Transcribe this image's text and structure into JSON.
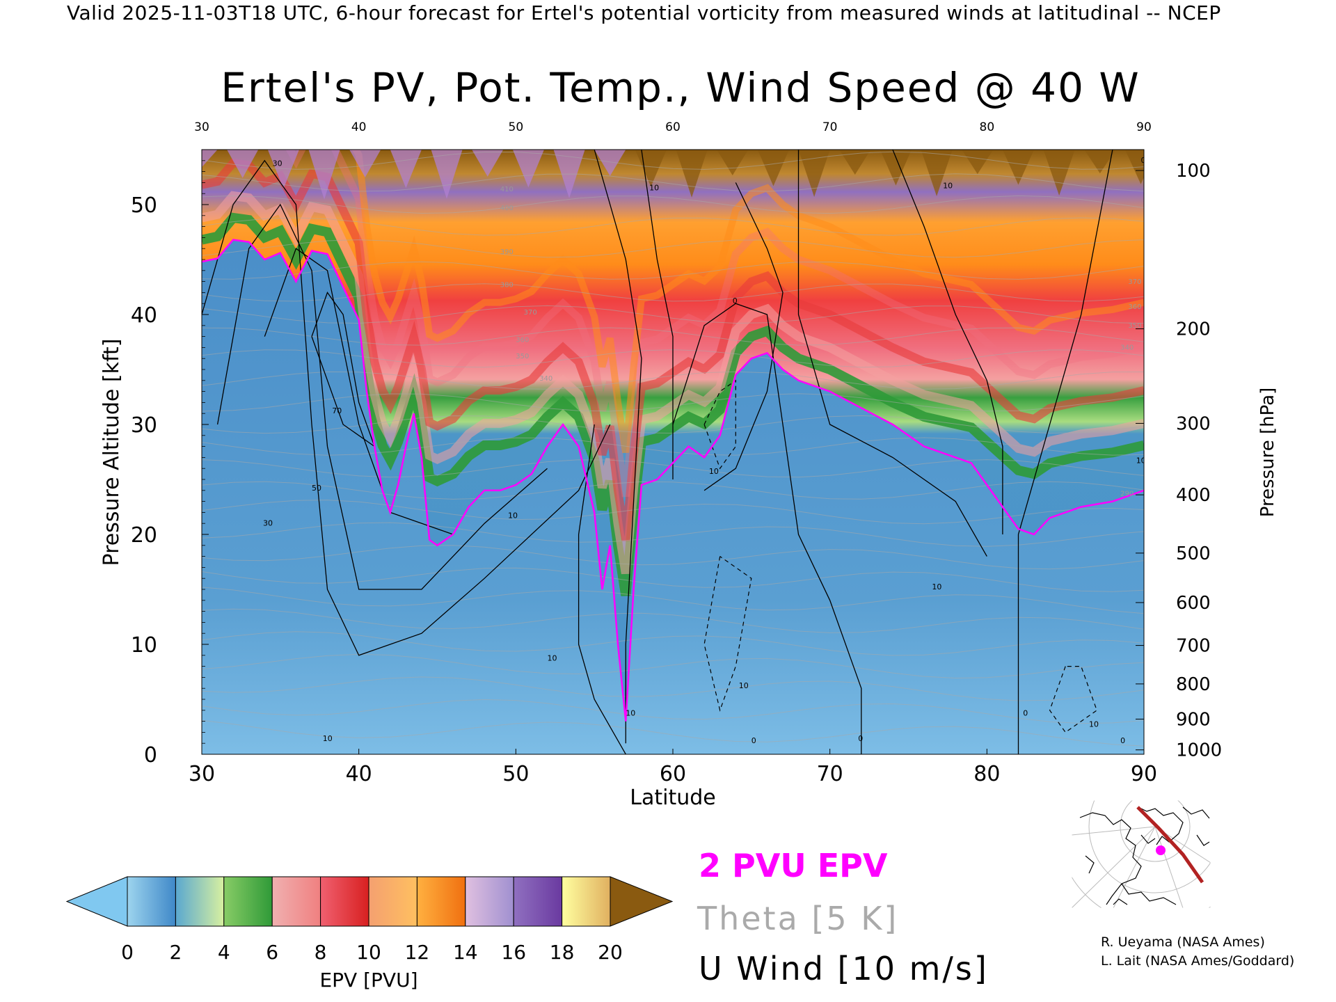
{
  "header": "Valid 2025-11-03T18 UTC, 6-hour forecast for Ertel's potential vorticity from measured winds at latitudinal -- NCEP",
  "chart_data": {
    "type": "heatmap",
    "title": "Ertel's PV, Pot. Temp., Wind Speed @ 40 W",
    "xlabel": "Latitude",
    "ylabel": "Pressure Altitude [kft]",
    "y2label": "Pressure [hPa]",
    "xlim": [
      30,
      90
    ],
    "ylim": [
      0,
      55
    ],
    "x_ticks": [
      30,
      40,
      50,
      60,
      70,
      80,
      90
    ],
    "y_ticks": [
      0,
      10,
      20,
      30,
      40,
      50
    ],
    "pressure_ticks": [
      {
        "hpa": "100",
        "kft": 53.1
      },
      {
        "hpa": "200",
        "kft": 38.7
      },
      {
        "hpa": "300",
        "kft": 30.1
      },
      {
        "hpa": "400",
        "kft": 23.6
      },
      {
        "hpa": "500",
        "kft": 18.3
      },
      {
        "hpa": "600",
        "kft": 13.8
      },
      {
        "hpa": "700",
        "kft": 9.9
      },
      {
        "hpa": "800",
        "kft": 6.4
      },
      {
        "hpa": "900",
        "kft": 3.2
      },
      {
        "hpa": "1000",
        "kft": 0.4
      }
    ],
    "colorbar": {
      "label": "EPV [PVU]",
      "ticks": [
        0,
        2,
        4,
        6,
        8,
        10,
        12,
        14,
        16,
        18,
        20
      ],
      "extend": "both",
      "bands": [
        {
          "from": 0,
          "to": 2,
          "colors": [
            "#9dd4ee",
            "#3f88c8"
          ]
        },
        {
          "from": 2,
          "to": 4,
          "colors": [
            "#5aa8d0",
            "#d8f0a0"
          ]
        },
        {
          "from": 4,
          "to": 6,
          "colors": [
            "#88cc66",
            "#2f9a38"
          ]
        },
        {
          "from": 6,
          "to": 8,
          "colors": [
            "#f0b0b0",
            "#f08080"
          ]
        },
        {
          "from": 8,
          "to": 10,
          "colors": [
            "#f06070",
            "#d82020"
          ]
        },
        {
          "from": 10,
          "to": 12,
          "colors": [
            "#f4a070",
            "#ffc060"
          ]
        },
        {
          "from": 12,
          "to": 14,
          "colors": [
            "#ffb040",
            "#f07010"
          ]
        },
        {
          "from": 14,
          "to": 16,
          "colors": [
            "#e0c0e0",
            "#a090d0"
          ]
        },
        {
          "from": 16,
          "to": 18,
          "colors": [
            "#9070c0",
            "#6a3aa0"
          ]
        },
        {
          "from": 18,
          "to": 20,
          "colors": [
            "#ffffa0",
            "#e0b060"
          ]
        }
      ],
      "under_color": "#80c8f0",
      "over_color": "#8a5a10"
    },
    "tropopause_2pvu": [
      [
        30,
        44.8
      ],
      [
        31,
        45.1
      ],
      [
        32,
        46.8
      ],
      [
        33,
        46.6
      ],
      [
        34,
        45.0
      ],
      [
        35,
        45.6
      ],
      [
        36,
        43.0
      ],
      [
        37,
        45.8
      ],
      [
        38,
        45.5
      ],
      [
        39,
        42.5
      ],
      [
        40,
        39.5
      ],
      [
        40.5,
        33.0
      ],
      [
        41,
        28.0
      ],
      [
        41.5,
        24.0
      ],
      [
        42,
        22.0
      ],
      [
        42.5,
        24.5
      ],
      [
        43,
        28.0
      ],
      [
        43.5,
        31.0
      ],
      [
        44,
        27.0
      ],
      [
        44.5,
        19.5
      ],
      [
        45,
        19.0
      ],
      [
        46,
        20.0
      ],
      [
        47,
        22.5
      ],
      [
        48,
        24.0
      ],
      [
        49,
        24.0
      ],
      [
        50,
        24.5
      ],
      [
        51,
        25.5
      ],
      [
        52,
        28.0
      ],
      [
        53,
        30.0
      ],
      [
        54,
        28.0
      ],
      [
        55,
        22.0
      ],
      [
        55.5,
        15.0
      ],
      [
        56,
        19.0
      ],
      [
        56.5,
        10.0
      ],
      [
        57,
        3.0
      ],
      [
        57.5,
        15.0
      ],
      [
        58,
        24.5
      ],
      [
        59,
        25.0
      ],
      [
        60,
        26.5
      ],
      [
        61,
        28.0
      ],
      [
        62,
        27.0
      ],
      [
        63,
        29.0
      ],
      [
        64,
        34.5
      ],
      [
        65,
        36.0
      ],
      [
        66,
        36.5
      ],
      [
        67,
        35.0
      ],
      [
        68,
        34.0
      ],
      [
        69,
        33.5
      ],
      [
        70,
        33.0
      ],
      [
        72,
        31.5
      ],
      [
        74,
        30.0
      ],
      [
        76,
        28.0
      ],
      [
        78,
        27.0
      ],
      [
        79,
        26.5
      ],
      [
        80,
        24.5
      ],
      [
        81,
        22.5
      ],
      [
        82,
        20.5
      ],
      [
        83,
        20.0
      ],
      [
        84,
        21.5
      ],
      [
        85,
        22.0
      ],
      [
        86,
        22.5
      ],
      [
        88,
        23.0
      ],
      [
        90,
        24.0
      ]
    ],
    "contour_labels": [
      {
        "text": "30",
        "x": 34.5,
        "y": 53.5,
        "kind": "wind"
      },
      {
        "text": "70",
        "x": 38.3,
        "y": 31.0,
        "kind": "wind"
      },
      {
        "text": "50",
        "x": 37.0,
        "y": 24.0,
        "kind": "wind"
      },
      {
        "text": "30",
        "x": 33.9,
        "y": 20.8,
        "kind": "wind"
      },
      {
        "text": "10",
        "x": 49.5,
        "y": 21.5,
        "kind": "wind"
      },
      {
        "text": "10",
        "x": 52.0,
        "y": 8.5,
        "kind": "wind"
      },
      {
        "text": "10",
        "x": 37.7,
        "y": 1.2,
        "kind": "wind"
      },
      {
        "text": "10",
        "x": 57.0,
        "y": 3.5,
        "kind": "wind"
      },
      {
        "text": "10",
        "x": 58.5,
        "y": 51.3,
        "kind": "wind"
      },
      {
        "text": "0",
        "x": 63.8,
        "y": 41.0,
        "kind": "wind"
      },
      {
        "text": "10",
        "x": 62.3,
        "y": 25.5,
        "kind": "wind"
      },
      {
        "text": "10",
        "x": 64.2,
        "y": 6.0,
        "kind": "wind"
      },
      {
        "text": "0",
        "x": 65.0,
        "y": 1.0,
        "kind": "wind"
      },
      {
        "text": "0",
        "x": 71.8,
        "y": 1.2,
        "kind": "wind"
      },
      {
        "text": "10",
        "x": 76.5,
        "y": 15.0,
        "kind": "wind"
      },
      {
        "text": "10",
        "x": 77.2,
        "y": 51.5,
        "kind": "wind"
      },
      {
        "text": "0",
        "x": 82.3,
        "y": 3.5,
        "kind": "wind"
      },
      {
        "text": "10",
        "x": 86.5,
        "y": 2.5,
        "kind": "wind"
      },
      {
        "text": "0",
        "x": 88.5,
        "y": 1.0,
        "kind": "wind"
      },
      {
        "text": "0",
        "x": 89.8,
        "y": 53.8,
        "kind": "wind"
      },
      {
        "text": "10",
        "x": 89.5,
        "y": 26.5,
        "kind": "wind"
      },
      {
        "text": "410",
        "x": 49.0,
        "y": 51.2,
        "kind": "theta"
      },
      {
        "text": "400",
        "x": 49.0,
        "y": 49.5,
        "kind": "theta"
      },
      {
        "text": "390",
        "x": 49.0,
        "y": 45.5,
        "kind": "theta"
      },
      {
        "text": "380",
        "x": 49.0,
        "y": 42.5,
        "kind": "theta"
      },
      {
        "text": "370",
        "x": 50.5,
        "y": 40.0,
        "kind": "theta"
      },
      {
        "text": "360",
        "x": 50.0,
        "y": 37.5,
        "kind": "theta"
      },
      {
        "text": "350",
        "x": 50.0,
        "y": 36.0,
        "kind": "theta"
      },
      {
        "text": "340",
        "x": 51.5,
        "y": 34.0,
        "kind": "theta"
      },
      {
        "text": "370",
        "x": 89.0,
        "y": 42.8,
        "kind": "theta"
      },
      {
        "text": "360",
        "x": 89.0,
        "y": 40.5,
        "kind": "theta"
      },
      {
        "text": "350",
        "x": 89.0,
        "y": 38.8,
        "kind": "theta"
      },
      {
        "text": "340",
        "x": 88.5,
        "y": 36.8,
        "kind": "theta"
      },
      {
        "text": "290",
        "x": 88.5,
        "y": 23.5,
        "kind": "theta"
      }
    ]
  },
  "legend": {
    "epv_label": "2 PVU EPV",
    "epv_color": "#ff00ff",
    "theta_label": "Theta [5 K]",
    "theta_color": "#aaaaaa",
    "wind_label": "U Wind [10 m/s]",
    "wind_color": "#000000"
  },
  "map": {
    "track_color": "#b22222",
    "marker_color": "#ff00ff"
  },
  "credits": [
    "R. Ueyama (NASA Ames)",
    "L. Lait (NASA Ames/Goddard)"
  ]
}
